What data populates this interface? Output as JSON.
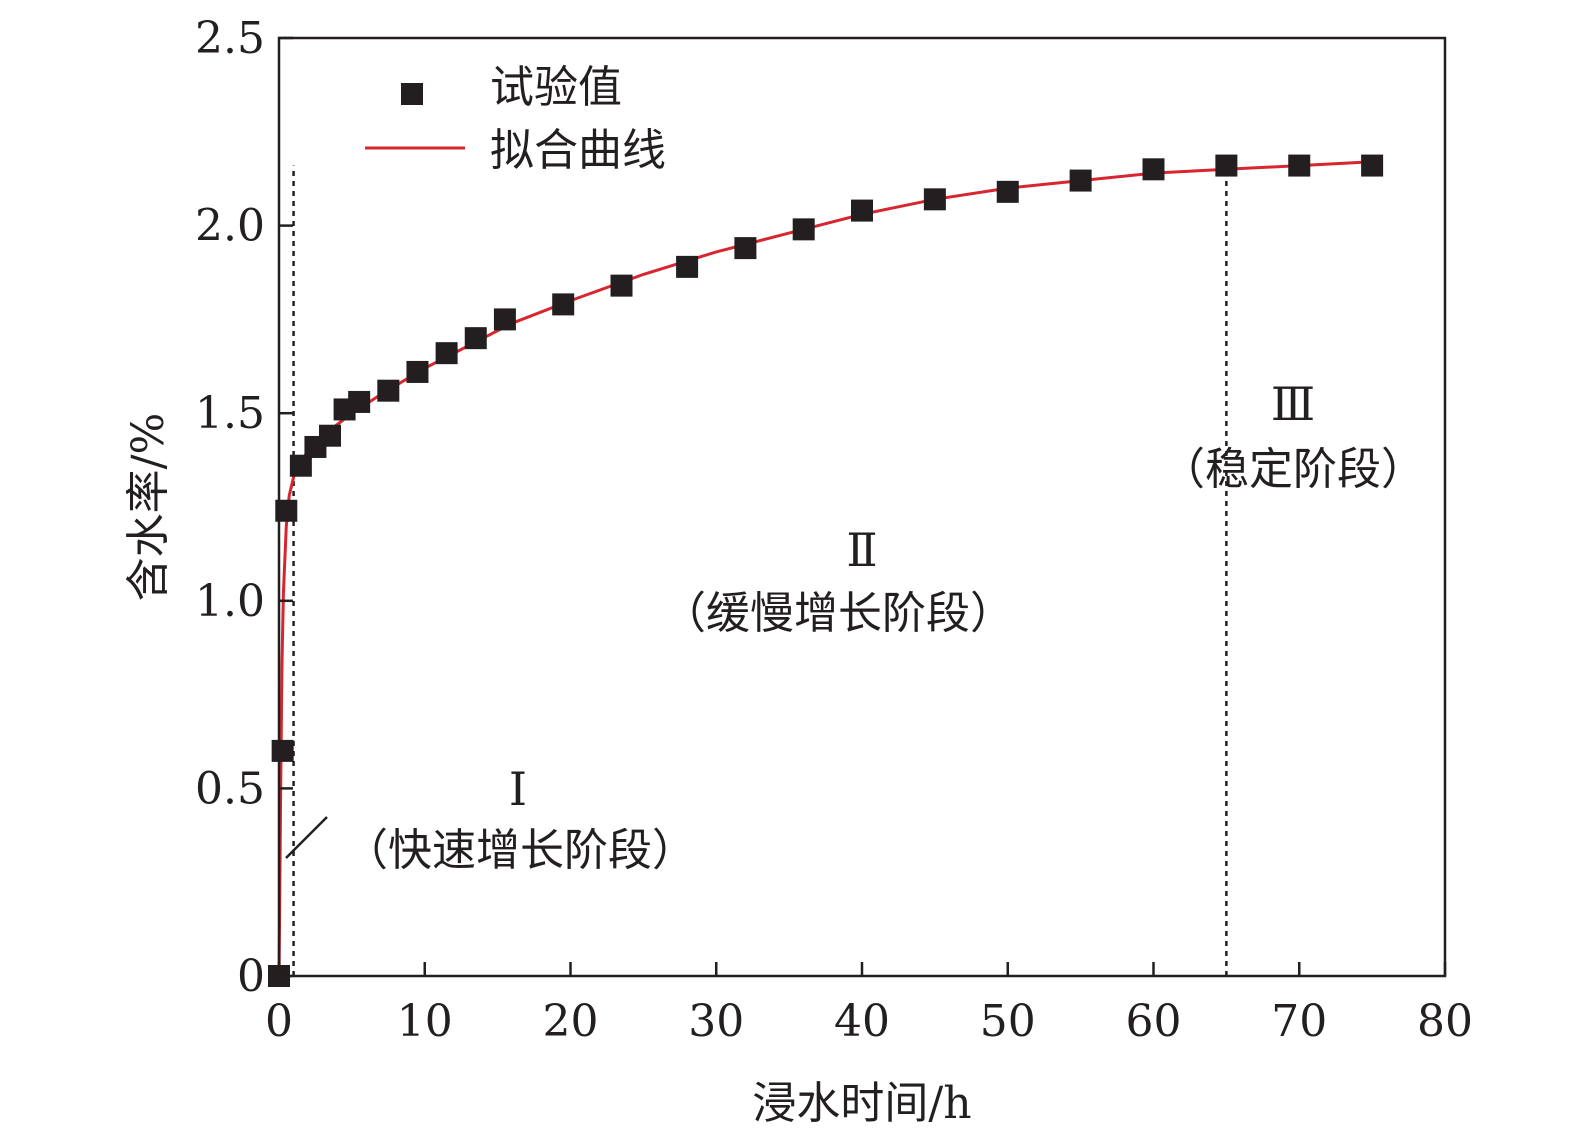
{
  "chart_data": {
    "type": "scatter",
    "xlabel": "浸水时间/h",
    "ylabel": "含水率/%",
    "xlim": [
      0,
      80
    ],
    "ylim": [
      0,
      2.5
    ],
    "x_ticks": [
      0,
      10,
      20,
      30,
      40,
      50,
      60,
      70,
      80
    ],
    "x_tick_labels": [
      "0",
      "10",
      "20",
      "30",
      "40",
      "50",
      "60",
      "70",
      "80"
    ],
    "y_ticks": [
      0,
      0.5,
      1.0,
      1.5,
      2.0,
      2.5
    ],
    "y_tick_labels": [
      "0",
      "0.5",
      "1.0",
      "1.5",
      "2.0",
      "2.5"
    ],
    "grid": false,
    "legend_position": "top-left",
    "series": [
      {
        "name": "试验值",
        "kind": "scatter",
        "marker": "square",
        "color": "#231f20",
        "x": [
          0,
          0.25,
          0.5,
          1.5,
          2.5,
          3.5,
          4.5,
          5.5,
          7.5,
          9.5,
          11.5,
          13.5,
          15.5,
          19.5,
          23.5,
          28,
          32,
          36,
          40,
          45,
          50,
          55,
          60,
          65,
          70,
          75
        ],
        "y": [
          0,
          0.6,
          1.24,
          1.36,
          1.41,
          1.44,
          1.51,
          1.53,
          1.56,
          1.61,
          1.66,
          1.7,
          1.75,
          1.79,
          1.84,
          1.89,
          1.94,
          1.99,
          2.04,
          2.07,
          2.09,
          2.12,
          2.15,
          2.16,
          2.16,
          2.16
        ]
      },
      {
        "name": "拟合曲线",
        "kind": "line",
        "color": "#d7262f",
        "x": [
          0,
          0.1,
          0.2,
          0.3,
          0.5,
          0.7,
          1.0,
          1.5,
          2,
          3,
          4,
          5,
          7,
          10,
          13,
          16,
          20,
          25,
          30,
          35,
          40,
          45,
          50,
          55,
          60,
          65,
          70,
          75
        ],
        "y": [
          -0.02,
          0.45,
          0.82,
          1.02,
          1.2,
          1.28,
          1.33,
          1.37,
          1.4,
          1.44,
          1.47,
          1.5,
          1.55,
          1.62,
          1.68,
          1.74,
          1.8,
          1.87,
          1.93,
          1.98,
          2.03,
          2.07,
          2.1,
          2.12,
          2.14,
          2.15,
          2.16,
          2.17
        ]
      }
    ],
    "reference_lines": [
      {
        "axis": "x",
        "value": 1,
        "style": "dotted"
      },
      {
        "axis": "x",
        "value": 65,
        "style": "dotted"
      }
    ],
    "annotations": {
      "stage1": {
        "numeral": "Ⅰ",
        "label": "（快速增长阶段）"
      },
      "stage2": {
        "numeral": "Ⅱ",
        "label": "（缓慢增长阶段）"
      },
      "stage3": {
        "numeral": "Ⅲ",
        "label": "（稳定阶段）"
      }
    }
  },
  "colors": {
    "axis": "#231f20",
    "marker": "#231f20",
    "fit_line": "#d7262f"
  }
}
